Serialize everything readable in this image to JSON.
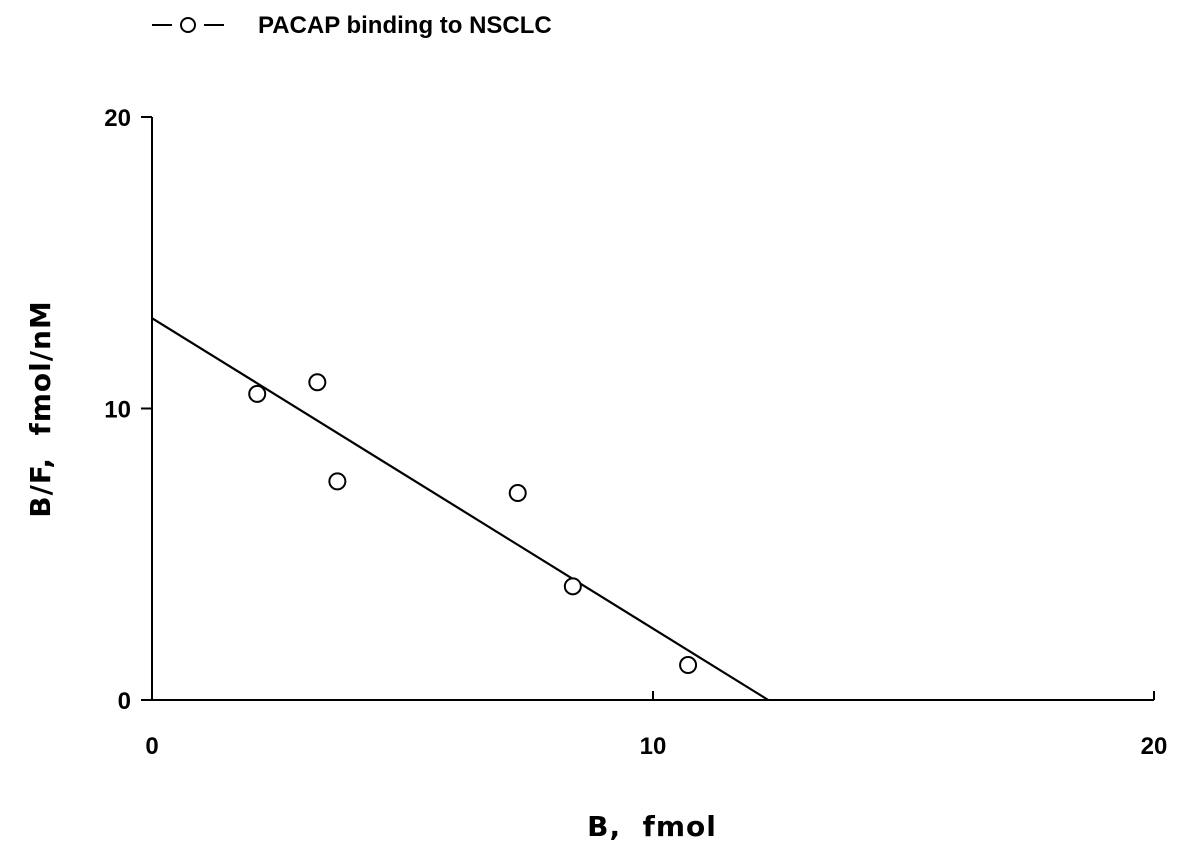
{
  "chart_data": {
    "type": "scatter",
    "title": "",
    "legend": {
      "label": "PACAP binding to NSCLC",
      "placement": "top-left"
    },
    "xlabel": "B,  fmol",
    "ylabel": "B/F,  fmol/nM",
    "xlim": [
      0,
      20
    ],
    "ylim": [
      0,
      20
    ],
    "x_ticks": [
      0,
      10,
      20
    ],
    "y_ticks": [
      0,
      10,
      20
    ],
    "grid": false,
    "series": [
      {
        "name": "PACAP binding to NSCLC",
        "marker": "open-circle",
        "points": [
          {
            "x": 2.1,
            "y": 10.5
          },
          {
            "x": 3.3,
            "y": 10.9
          },
          {
            "x": 3.7,
            "y": 7.5
          },
          {
            "x": 7.3,
            "y": 7.1
          },
          {
            "x": 8.4,
            "y": 3.9
          },
          {
            "x": 10.7,
            "y": 1.2
          }
        ]
      }
    ],
    "fit_line": {
      "x": [
        0,
        12.3
      ],
      "y": [
        13.1,
        0
      ]
    }
  },
  "colors": {
    "ink": "#000000",
    "background": "#ffffff"
  }
}
